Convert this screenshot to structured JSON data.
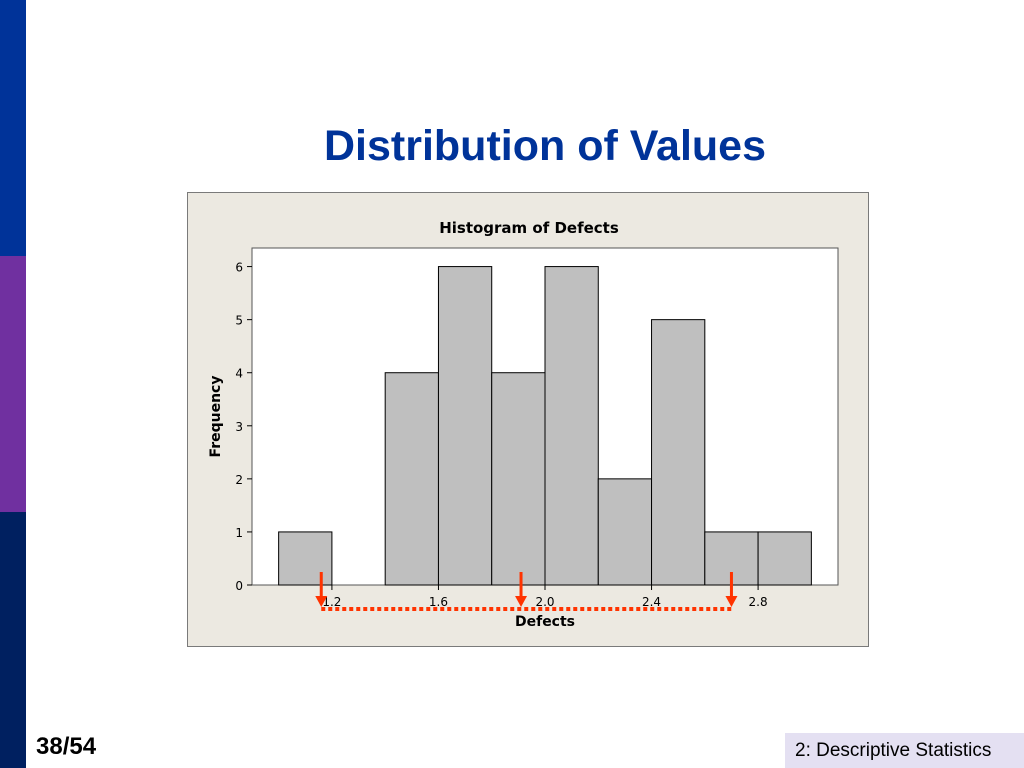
{
  "slide": {
    "title": "Distribution of Values",
    "page_number": "38/54",
    "footer": "2: Descriptive Statistics"
  },
  "colors": {
    "stripe_top": "#003399",
    "stripe_mid": "#7030a0",
    "stripe_bottom": "#002060",
    "title": "#003399",
    "bar_fill": "#bfbfbf",
    "annotation": "#ff3300"
  },
  "chart_data": {
    "type": "bar",
    "title": "Histogram of Defects",
    "xlabel": "Defects",
    "ylabel": "Frequency",
    "bin_centers": [
      1.1,
      1.3,
      1.5,
      1.7,
      1.9,
      2.1,
      2.3,
      2.5,
      2.7,
      2.9
    ],
    "values": [
      1,
      0,
      4,
      6,
      4,
      6,
      2,
      5,
      1,
      1
    ],
    "xlim": [
      0.9,
      3.1
    ],
    "ylim": [
      0,
      6.35
    ],
    "x_ticks": [
      "1.2",
      "1.6",
      "2.0",
      "2.4",
      "2.8"
    ],
    "x_tick_values": [
      1.2,
      1.6,
      2.0,
      2.4,
      2.8
    ],
    "y_ticks": [
      0,
      1,
      2,
      3,
      4,
      5,
      6
    ],
    "grid": false,
    "annotations": {
      "arrows_at_x": [
        1.16,
        1.91,
        2.7
      ],
      "dotted_range": [
        1.16,
        2.7
      ]
    }
  }
}
